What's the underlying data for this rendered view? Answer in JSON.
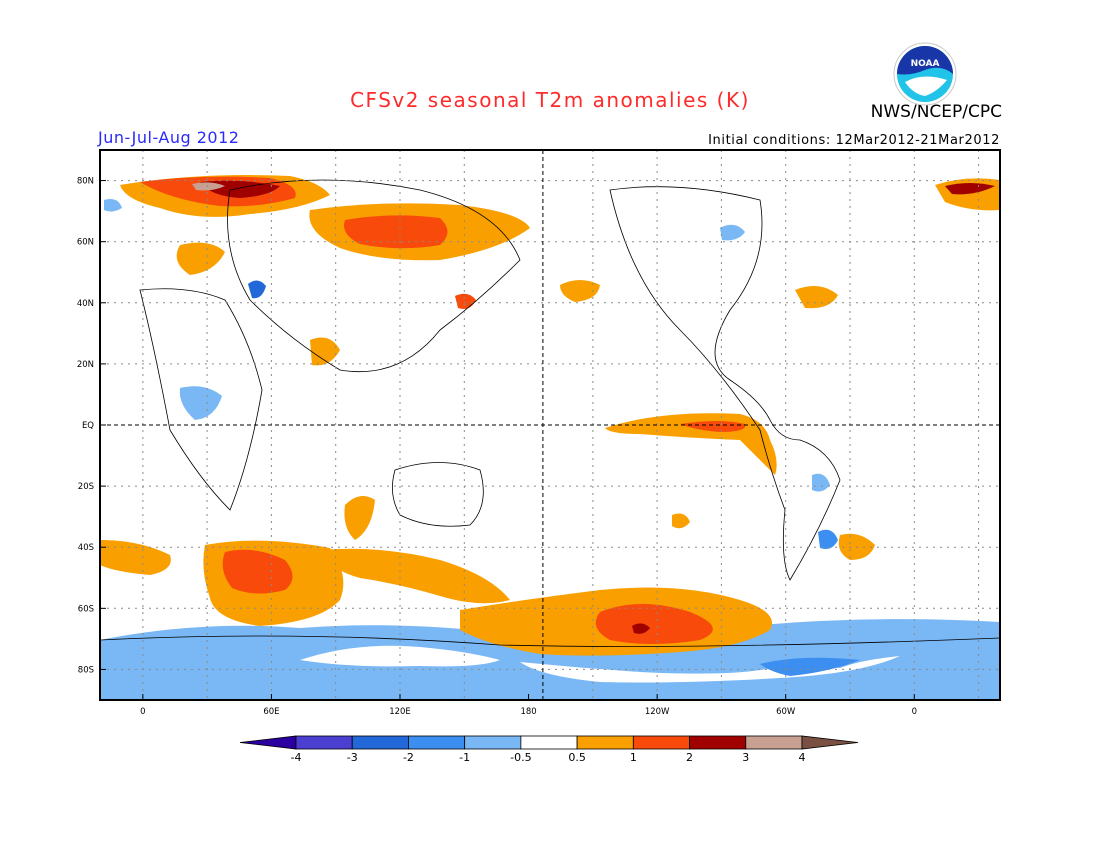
{
  "title": "CFSv2 seasonal T2m anomalies (K)",
  "period": "Jun-Jul-Aug 2012",
  "organization": "NWS/NCEP/CPC",
  "initial_conditions": "Initial conditions: 12Mar2012-21Mar2012",
  "logo_text": "NOAA",
  "lat_labels": [
    "80N",
    "60N",
    "40N",
    "20N",
    "EQ",
    "20S",
    "40S",
    "60S",
    "80S"
  ],
  "lat_values": [
    80,
    60,
    40,
    20,
    0,
    -20,
    -40,
    -60,
    -80
  ],
  "lon_labels": [
    "0",
    "60E",
    "120E",
    "180",
    "120W",
    "60W",
    "0"
  ],
  "lon_values": [
    0,
    60,
    120,
    180,
    240,
    300,
    360
  ],
  "map_extent": {
    "lon_min": -20,
    "lon_max": 400,
    "lat_min": -90,
    "lat_max": 90
  },
  "colorbar": {
    "labels": [
      "-4",
      "-3",
      "-2",
      "-1",
      "-0.5",
      "0.5",
      "1",
      "2",
      "3",
      "4"
    ],
    "colors": [
      "#2c00a0",
      "#4a3fd0",
      "#2268d8",
      "#3c8ef0",
      "#79b7f5",
      "#ffffff",
      "#f9a000",
      "#f84a0a",
      "#a00000",
      "#c8a092",
      "#7a5043"
    ]
  },
  "colors": {
    "cold1": "#79b7f5",
    "cold2": "#3c8ef0",
    "cold3": "#2268d8",
    "cold4": "#2c00a0",
    "warm1": "#f9a000",
    "warm2": "#f84a0a",
    "warm3": "#a00000",
    "warm4": "#c8a092"
  }
}
